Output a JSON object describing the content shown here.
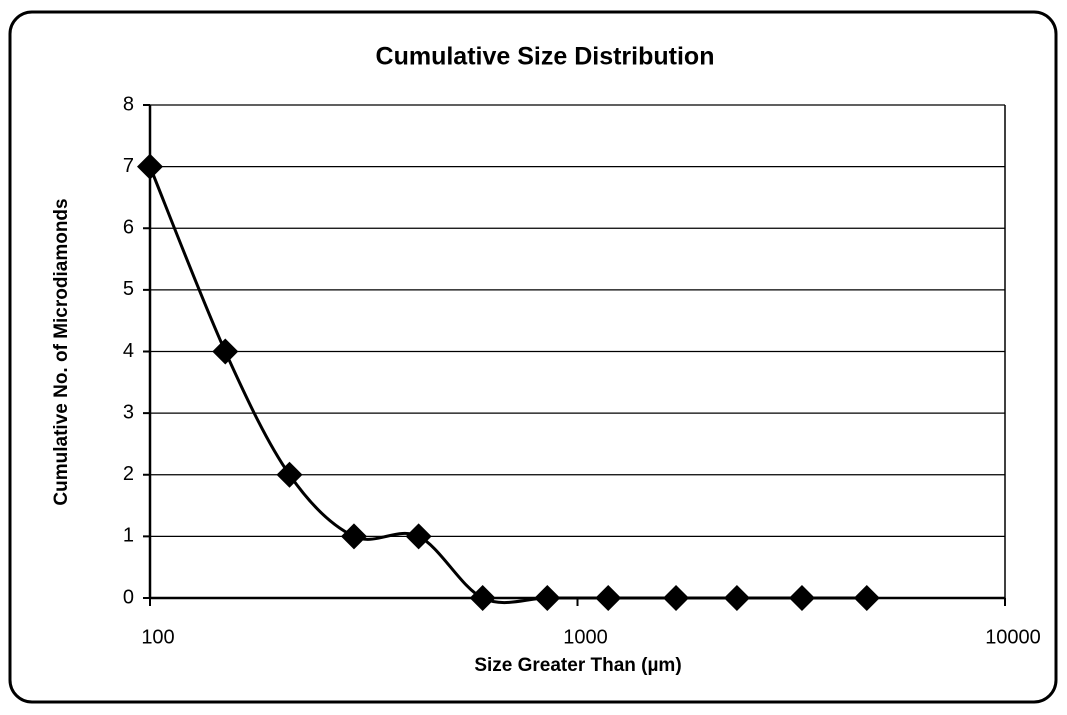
{
  "chart_data": {
    "type": "line",
    "title": "Cumulative Size Distribution",
    "x_label": "Size Greater Than (µm)",
    "y_label": "Cumulative No. of Microdiamonds",
    "x": [
      100,
      150,
      212,
      300,
      425,
      600,
      850,
      1180,
      1700,
      2360,
      3350,
      4750
    ],
    "values": [
      7,
      4,
      2,
      1,
      1,
      0,
      0,
      0,
      0,
      0,
      0,
      0
    ],
    "color": "#000000",
    "marker": "diamond",
    "smooth": true,
    "xscale": "log",
    "xlim": [
      100,
      10000
    ],
    "xticks": [
      100,
      1000,
      10000
    ],
    "ylim": [
      0,
      8
    ],
    "yticks": [
      0,
      1,
      2,
      3,
      4,
      5,
      6,
      7,
      8
    ],
    "grid": true
  }
}
